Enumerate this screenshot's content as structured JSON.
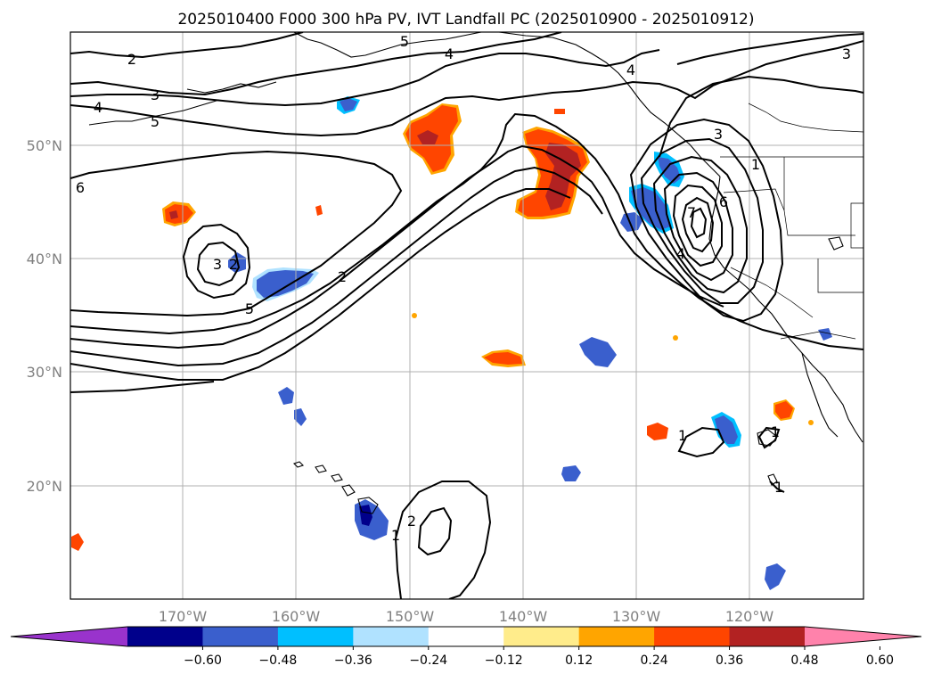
{
  "title": "2025010400 F000 300 hPa PV, IVT Landfall PC (2025010900 - 2025010912)",
  "lat_labels": [
    "50°N",
    "40°N",
    "30°N",
    "20°N"
  ],
  "lon_labels": [
    "170°W",
    "160°W",
    "150°W",
    "140°W",
    "130°W",
    "120°W"
  ],
  "colorbar": {
    "colors": [
      "#9933cc",
      "#00008b",
      "#3a5fcd",
      "#00bfff",
      "#b0e2ff",
      "#ffffff",
      "#ffec8b",
      "#ffa500",
      "#ff4500",
      "#b22222",
      "#ff82ab"
    ],
    "tick_labels": [
      "−0.60",
      "−0.48",
      "−0.36",
      "−0.24",
      "−0.12",
      "0.12",
      "0.24",
      "0.36",
      "0.48",
      "0.60"
    ]
  },
  "contour_labels": [
    "2",
    "3",
    "4",
    "5",
    "6",
    "5",
    "4",
    "3",
    "2",
    "1",
    "6",
    "7",
    "4",
    "1",
    "1",
    "1",
    "1",
    "2",
    "3",
    "5",
    "2",
    "3",
    "4"
  ]
}
